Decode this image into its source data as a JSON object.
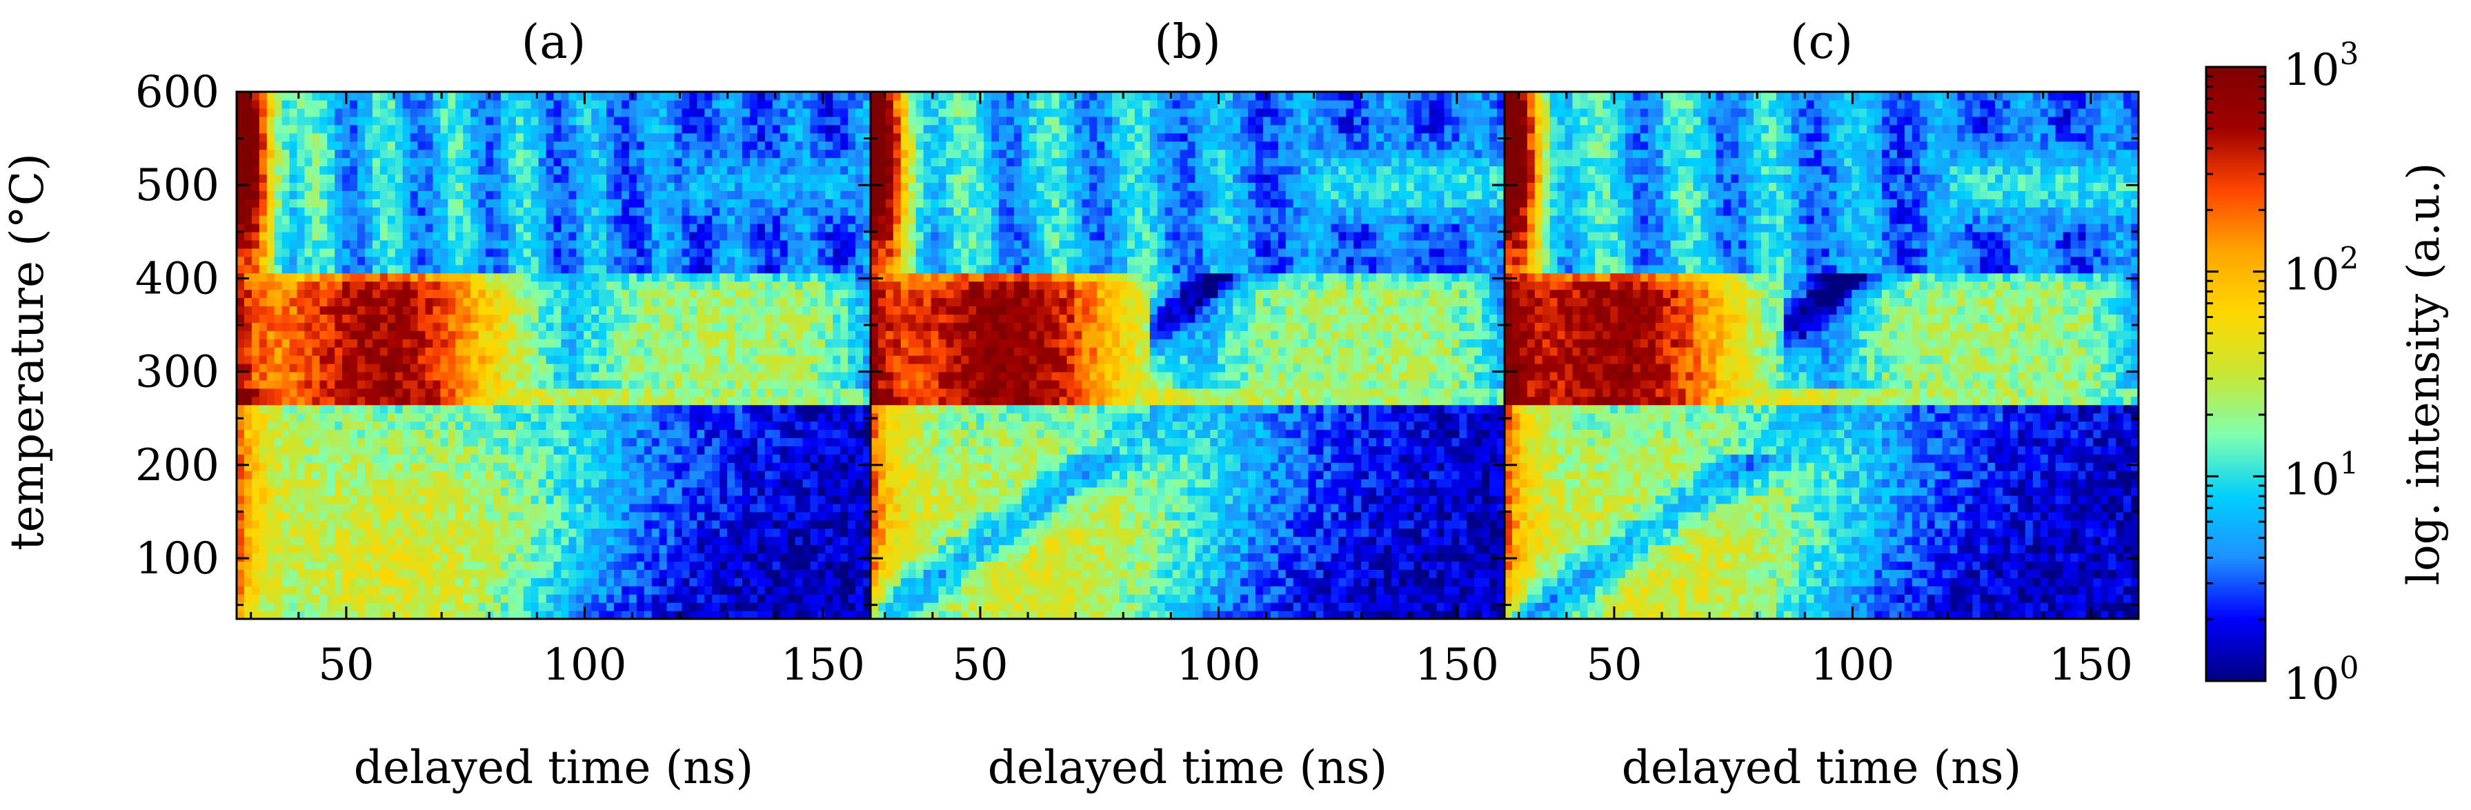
{
  "chart_data": {
    "type": "heatmap",
    "panels": [
      {
        "label": "(a)",
        "xlabel": "delayed time (ns)"
      },
      {
        "label": "(b)",
        "xlabel": "delayed time (ns)"
      },
      {
        "label": "(c)",
        "xlabel": "delayed time (ns)"
      }
    ],
    "ylabel": "temperature (°C)",
    "xlim": [
      27,
      160
    ],
    "ylim": [
      35,
      600
    ],
    "xticks": [
      50,
      100,
      150
    ],
    "yticks": [
      100,
      200,
      300,
      400,
      500,
      600
    ],
    "colorbar": {
      "label": "log. intensity (a.u.)",
      "scale": "log",
      "range": [
        1,
        1000
      ],
      "ticks": [
        {
          "value": 1,
          "base": "10",
          "exp": "0"
        },
        {
          "value": 10,
          "base": "10",
          "exp": "1"
        },
        {
          "value": 100,
          "base": "10",
          "exp": "2"
        },
        {
          "value": 1000,
          "base": "10",
          "exp": "3"
        }
      ],
      "colormap": [
        "#00007f",
        "#0000ff",
        "#1e90ff",
        "#00cfff",
        "#7fffb0",
        "#c8e632",
        "#ffd700",
        "#ffa500",
        "#ff4500",
        "#a00000",
        "#7f0000"
      ]
    },
    "phase_boundary_temperature": 268,
    "plateau_temperature": 410
  }
}
